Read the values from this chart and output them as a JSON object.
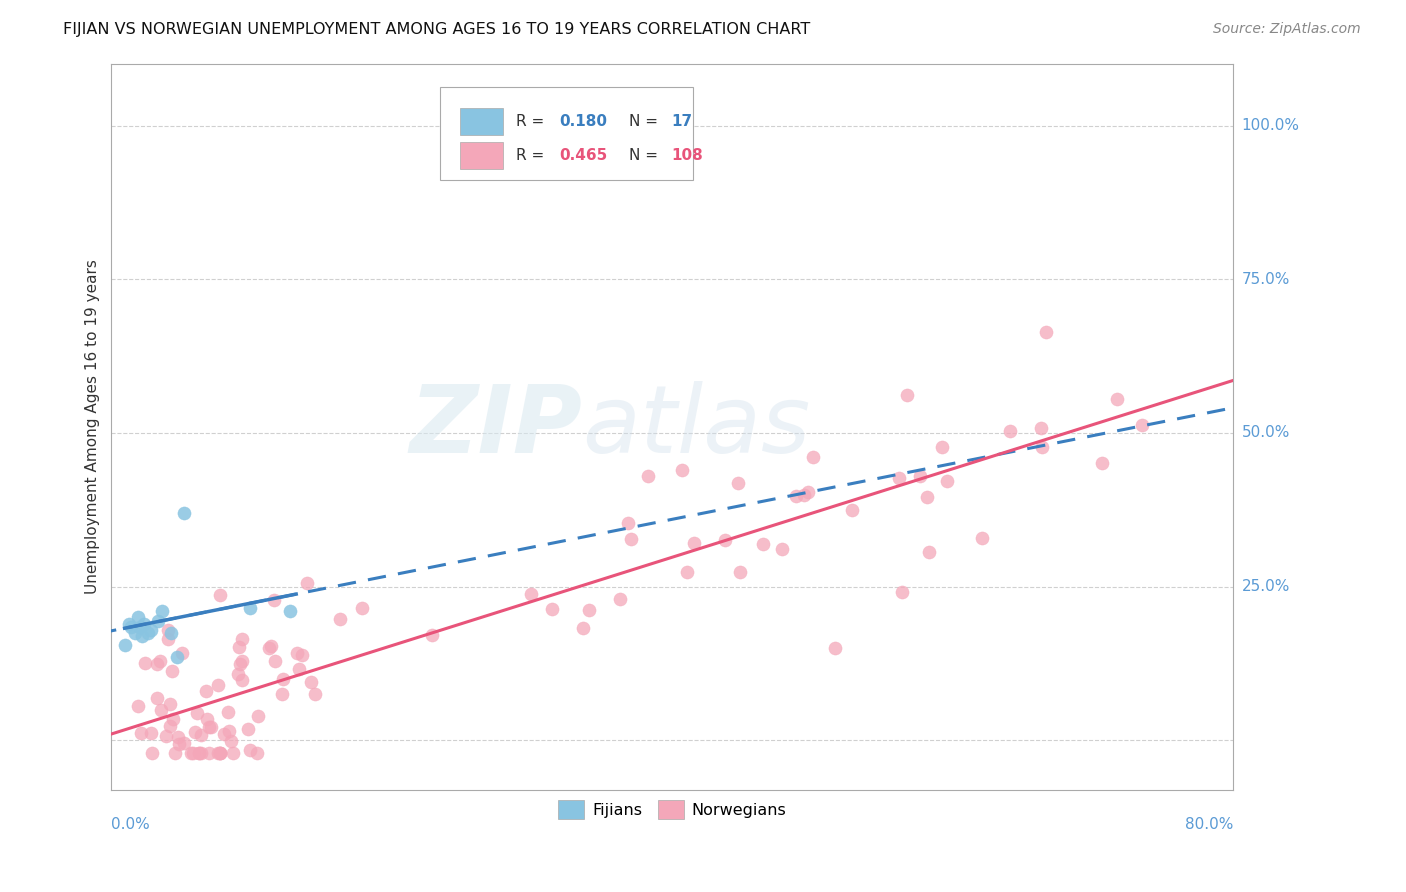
{
  "title": "FIJIAN VS NORWEGIAN UNEMPLOYMENT AMONG AGES 16 TO 19 YEARS CORRELATION CHART",
  "source": "Source: ZipAtlas.com",
  "ylabel": "Unemployment Among Ages 16 to 19 years",
  "fijian_color": "#89c4e1",
  "norwegian_color": "#f4a7b9",
  "fijian_line_color": "#3a7ebf",
  "norwegian_line_color": "#e8547a",
  "right_axis_color": "#5b9bd5",
  "fijian_R": 0.18,
  "fijian_N": 17,
  "norwegian_R": 0.465,
  "norwegian_N": 108,
  "watermark_zip": "ZIP",
  "watermark_atlas": "atlas",
  "background_color": "#ffffff",
  "grid_color": "#d0d0d0",
  "xlim": [
    -0.01,
    0.84
  ],
  "ylim": [
    -0.08,
    1.1
  ]
}
